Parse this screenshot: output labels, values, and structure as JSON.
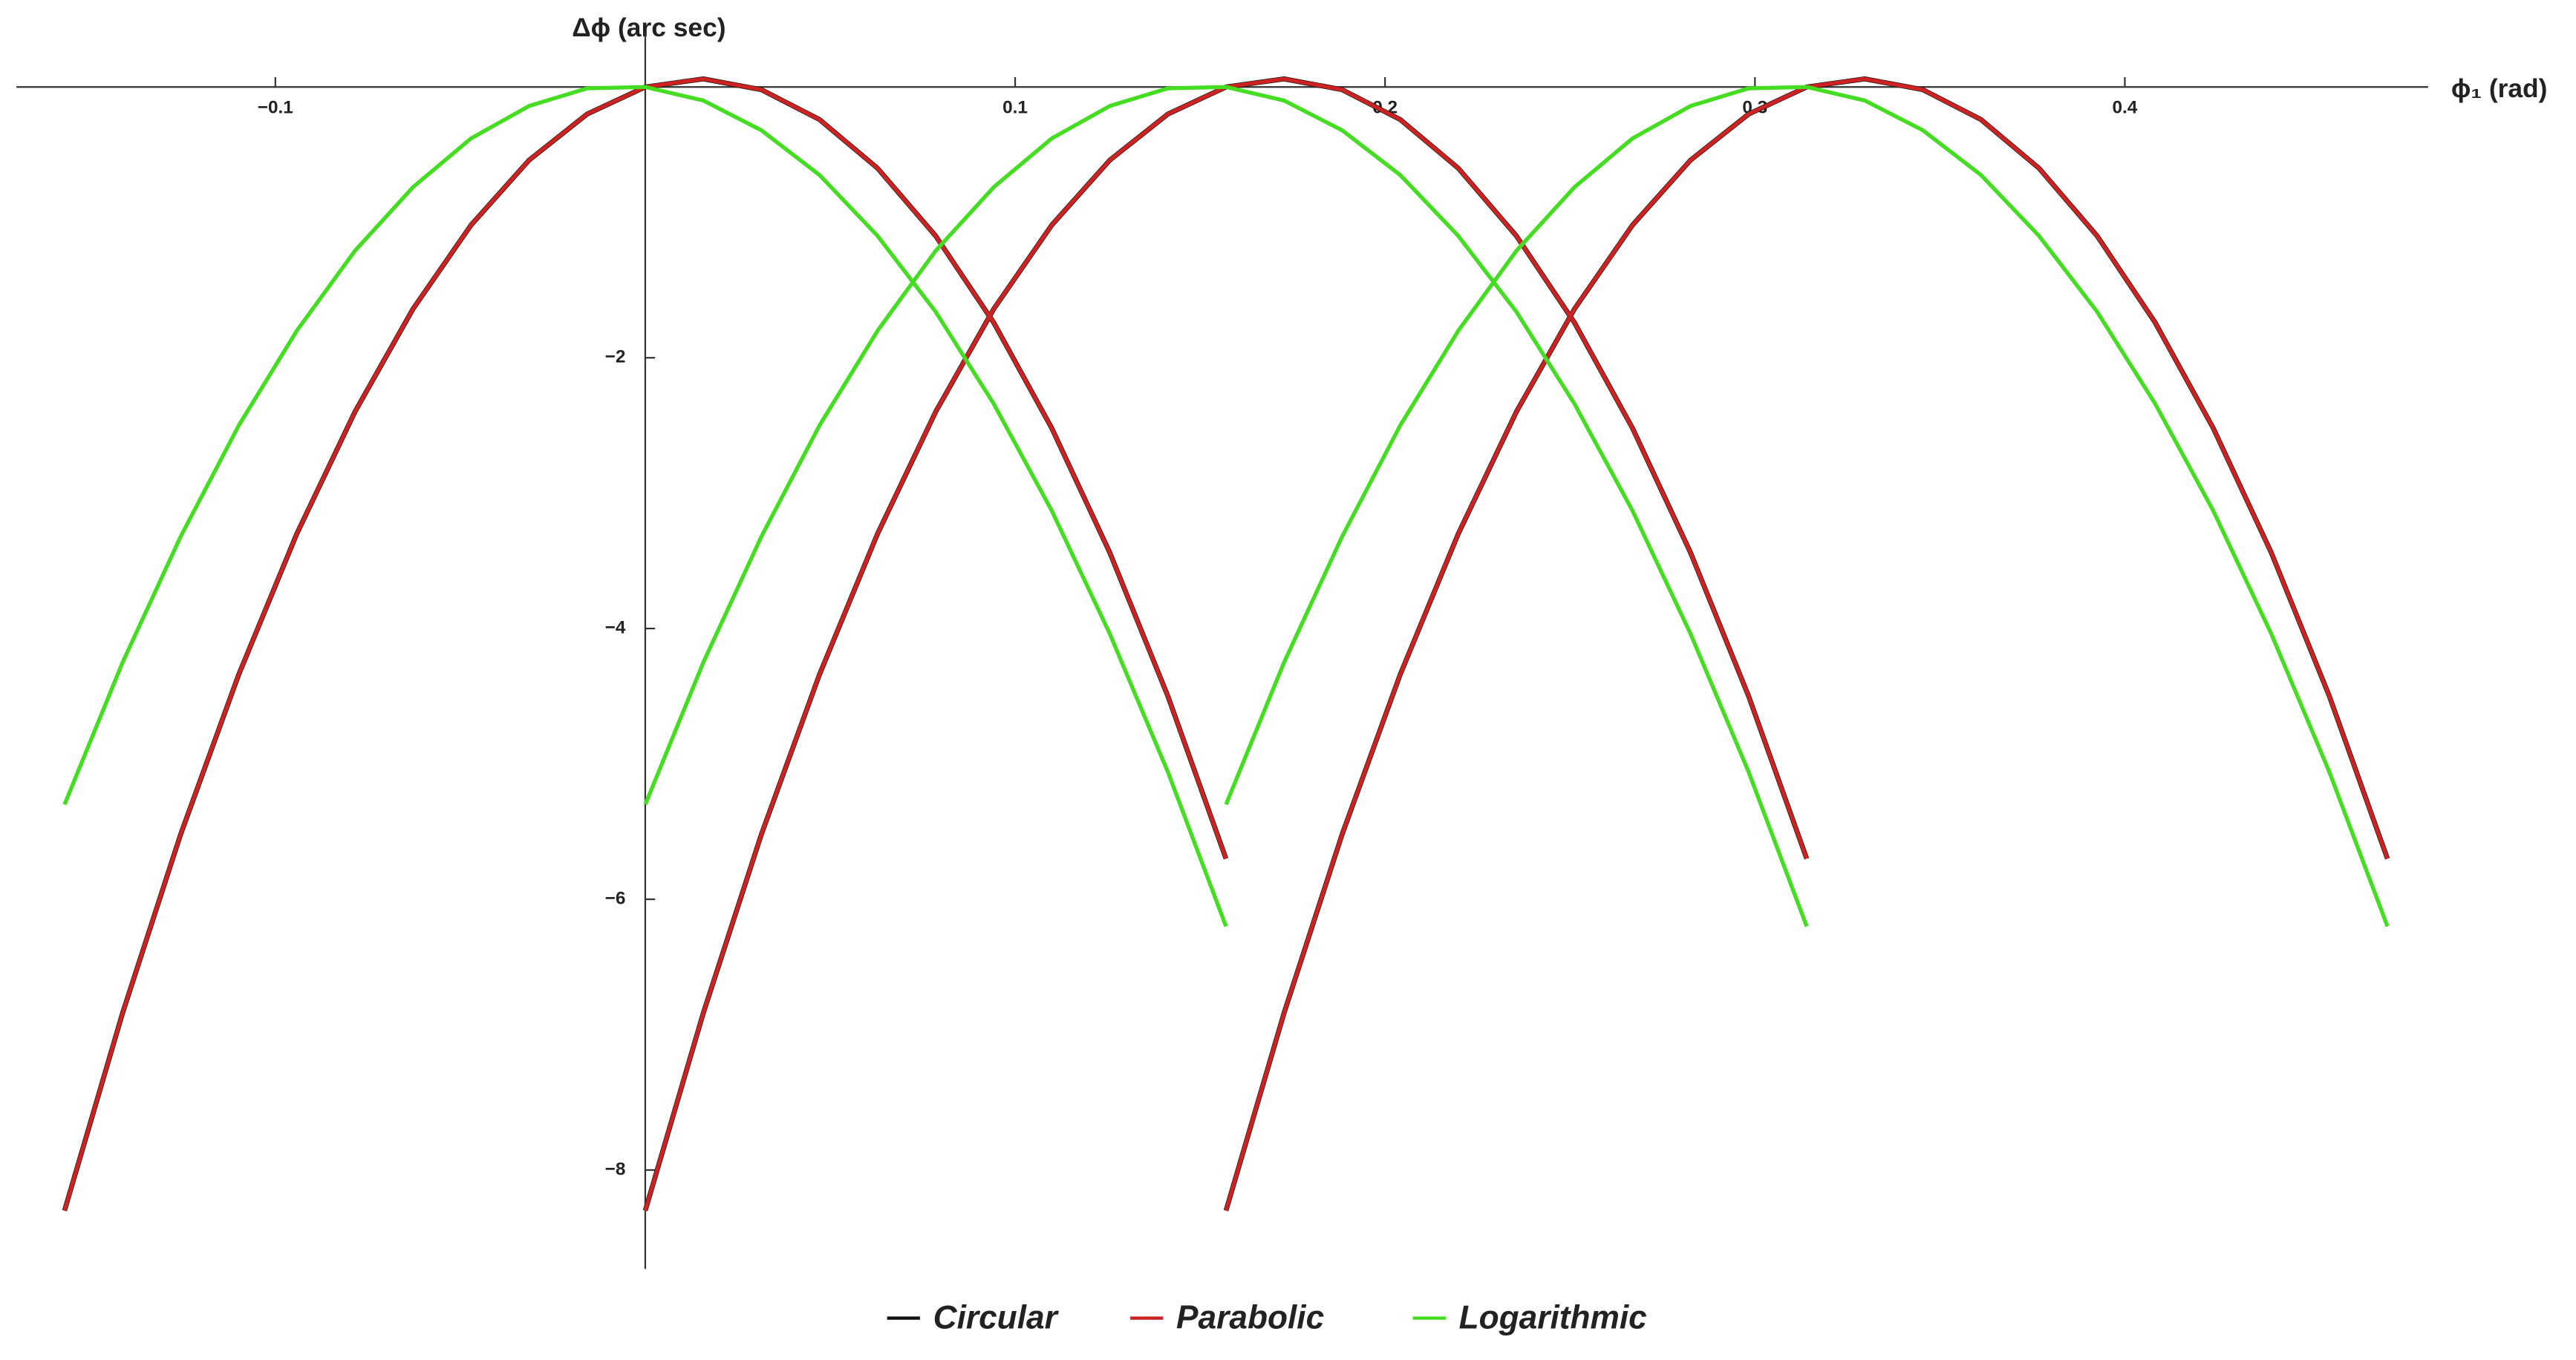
{
  "chart_data": {
    "type": "line",
    "x_label": "ϕ₁ (rad)",
    "y_label": "Δϕ (arc sec)",
    "xlim": [
      -0.17,
      0.482
    ],
    "ylim": [
      -8.73,
      0.4
    ],
    "xticks": [
      {
        "value": -0.1,
        "label": "−0.1"
      },
      0.1,
      0.2,
      0.3,
      0.4
    ],
    "yticks": [
      {
        "value": -8,
        "label": "−8"
      },
      {
        "value": -6,
        "label": "−6"
      },
      {
        "value": -4,
        "label": "−4"
      },
      {
        "value": -2,
        "label": "−2"
      }
    ],
    "legend": "bottom",
    "x": [
      -0.157,
      -0.1413,
      -0.1256,
      -0.1099,
      -0.0942,
      -0.0785,
      -0.0628,
      -0.0471,
      -0.0314,
      -0.0157,
      0,
      0.0157,
      0.0314,
      0.0471,
      0.0628,
      0.0785,
      0.0942,
      0.1099,
      0.1256,
      0.1413,
      0.157,
      null,
      0,
      0.0157,
      0.0314,
      0.0471,
      0.0628,
      0.0785,
      0.0942,
      0.1099,
      0.1256,
      0.1413,
      0.157,
      0.1727,
      0.1884,
      0.2041,
      0.2198,
      0.2355,
      0.2512,
      0.2669,
      0.2826,
      0.2983,
      0.314,
      null,
      0.157,
      0.1727,
      0.1884,
      0.2041,
      0.2198,
      0.2355,
      0.2512,
      0.2669,
      0.2826,
      0.2983,
      0.314,
      0.3297,
      0.3454,
      0.3611,
      0.3768,
      0.3925,
      0.4082,
      0.4239,
      0.4396,
      0.4553,
      0.471
    ],
    "series": [
      {
        "name": "Circular",
        "color": "#111111",
        "values": [
          -8.3,
          -6.84,
          -5.52,
          -4.34,
          -3.3,
          -2.4,
          -1.64,
          -1.02,
          -0.54,
          -0.2,
          0,
          0.06,
          -0.02,
          -0.24,
          -0.6,
          -1.1,
          -1.74,
          -2.52,
          -3.44,
          -4.5,
          -5.7,
          null,
          -8.3,
          -6.84,
          -5.52,
          -4.34,
          -3.3,
          -2.4,
          -1.64,
          -1.02,
          -0.54,
          -0.2,
          0,
          0.06,
          -0.02,
          -0.24,
          -0.6,
          -1.1,
          -1.74,
          -2.52,
          -3.44,
          -4.5,
          -5.7,
          null,
          -8.3,
          -6.84,
          -5.52,
          -4.34,
          -3.3,
          -2.4,
          -1.64,
          -1.02,
          -0.54,
          -0.2,
          0,
          0.06,
          -0.02,
          -0.24,
          -0.6,
          -1.1,
          -1.74,
          -2.52,
          -3.44,
          -4.5,
          -5.7
        ]
      },
      {
        "name": "Parabolic",
        "color": "#cc2222",
        "values": [
          -8.3,
          -6.84,
          -5.52,
          -4.34,
          -3.3,
          -2.4,
          -1.64,
          -1.02,
          -0.54,
          -0.2,
          0,
          0.06,
          -0.02,
          -0.24,
          -0.6,
          -1.1,
          -1.74,
          -2.52,
          -3.44,
          -4.5,
          -5.7,
          null,
          -8.3,
          -6.84,
          -5.52,
          -4.34,
          -3.3,
          -2.4,
          -1.64,
          -1.02,
          -0.54,
          -0.2,
          0,
          0.06,
          -0.02,
          -0.24,
          -0.6,
          -1.1,
          -1.74,
          -2.52,
          -3.44,
          -4.5,
          -5.7,
          null,
          -8.3,
          -6.84,
          -5.52,
          -4.34,
          -3.3,
          -2.4,
          -1.64,
          -1.02,
          -0.54,
          -0.2,
          0,
          0.06,
          -0.02,
          -0.24,
          -0.6,
          -1.1,
          -1.74,
          -2.52,
          -3.44,
          -4.5,
          -5.7
        ]
      },
      {
        "name": "Logarithmic",
        "color": "#44dd22",
        "values": [
          -5.3,
          -4.25,
          -3.32,
          -2.5,
          -1.8,
          -1.21,
          -0.74,
          -0.38,
          -0.14,
          -0.01,
          0,
          -0.1,
          -0.32,
          -0.65,
          -1.1,
          -1.66,
          -2.34,
          -3.13,
          -4.04,
          -5.06,
          -6.2,
          null,
          -5.3,
          -4.25,
          -3.32,
          -2.5,
          -1.8,
          -1.21,
          -0.74,
          -0.38,
          -0.14,
          -0.01,
          0,
          -0.1,
          -0.32,
          -0.65,
          -1.1,
          -1.66,
          -2.34,
          -3.13,
          -4.04,
          -5.06,
          -6.2,
          null,
          -5.3,
          -4.25,
          -3.32,
          -2.5,
          -1.8,
          -1.21,
          -0.74,
          -0.38,
          -0.14,
          -0.01,
          0,
          -0.1,
          -0.32,
          -0.65,
          -1.1,
          -1.66,
          -2.34,
          -3.13,
          -4.04,
          -5.06,
          -6.2
        ]
      }
    ]
  }
}
